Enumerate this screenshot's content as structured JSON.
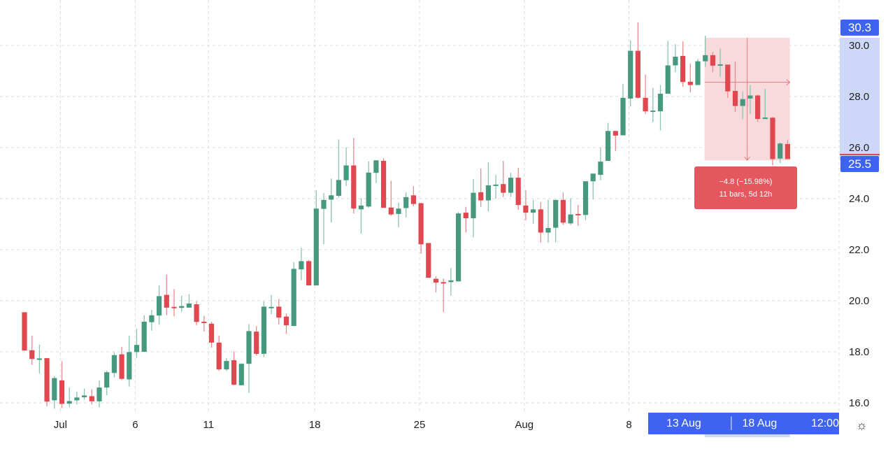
{
  "chart_data": {
    "type": "candlestick",
    "interval": "12h",
    "ylim": [
      15.7,
      31.0
    ],
    "yticks": [
      16.0,
      18.0,
      20.0,
      22.0,
      24.0,
      26.0,
      28.0,
      30.0
    ],
    "ytick_labels": [
      "16.0",
      "18.0",
      "20.0",
      "22.0",
      "24.0",
      "26.0",
      "28.0",
      "30.0"
    ],
    "xticks": [
      {
        "label": "Jul",
        "bar": 4.8
      },
      {
        "label": "6",
        "bar": 14.8
      },
      {
        "label": "11",
        "bar": 24.6
      },
      {
        "label": "18",
        "bar": 38.8
      },
      {
        "label": "25",
        "bar": 52.8
      },
      {
        "label": "Aug",
        "bar": 66.8
      },
      {
        "label": "8",
        "bar": 80.8
      }
    ],
    "grid": true,
    "colors": {
      "up": "#46997f",
      "down": "#e0474f",
      "up_wick": "#8cc3b2",
      "down_wick": "#ec8a8f",
      "accent": "#3d63ef",
      "measure_fill": "#f7d4d7",
      "measure_label": "#e5575f"
    },
    "ohlc": [
      [
        19.55,
        19.55,
        18.05,
        18.05
      ],
      [
        18.06,
        18.63,
        17.49,
        17.72
      ],
      [
        17.72,
        18.28,
        17.15,
        17.74
      ],
      [
        17.75,
        17.75,
        15.86,
        16.05
      ],
      [
        16.1,
        17.05,
        15.77,
        16.97
      ],
      [
        16.88,
        17.63,
        15.8,
        15.96
      ],
      [
        15.97,
        16.6,
        15.84,
        16.07
      ],
      [
        16.1,
        16.44,
        15.94,
        16.21
      ],
      [
        16.22,
        16.56,
        16.12,
        16.29
      ],
      [
        16.26,
        16.53,
        15.94,
        16.06
      ],
      [
        16.06,
        16.88,
        15.82,
        16.6
      ],
      [
        16.6,
        17.26,
        16.3,
        17.2
      ],
      [
        17.17,
        17.99,
        17.0,
        17.87
      ],
      [
        17.9,
        18.19,
        16.9,
        16.94
      ],
      [
        16.92,
        18.63,
        16.64,
        17.99
      ],
      [
        17.99,
        18.9,
        17.76,
        18.27
      ],
      [
        18.0,
        19.43,
        17.99,
        19.18
      ],
      [
        19.16,
        19.64,
        18.83,
        19.43
      ],
      [
        19.42,
        20.6,
        19.06,
        20.18
      ],
      [
        20.23,
        21.02,
        19.43,
        19.73
      ],
      [
        19.76,
        20.46,
        19.39,
        19.72
      ],
      [
        19.72,
        20.2,
        19.57,
        19.79
      ],
      [
        19.73,
        20.25,
        19.73,
        19.89
      ],
      [
        19.86,
        19.98,
        19.04,
        19.17
      ],
      [
        19.18,
        19.41,
        18.79,
        19.13
      ],
      [
        19.1,
        19.18,
        18.16,
        18.36
      ],
      [
        18.36,
        18.63,
        17.25,
        17.31
      ],
      [
        17.31,
        17.76,
        17.24,
        17.64
      ],
      [
        17.67,
        18.01,
        16.69,
        16.71
      ],
      [
        16.69,
        17.55,
        16.69,
        17.53
      ],
      [
        17.53,
        19.09,
        16.39,
        18.81
      ],
      [
        18.79,
        19.01,
        17.85,
        17.92
      ],
      [
        17.92,
        19.98,
        17.79,
        19.77
      ],
      [
        19.74,
        20.23,
        19.47,
        19.76
      ],
      [
        19.77,
        20.07,
        19.07,
        19.34
      ],
      [
        19.38,
        19.5,
        18.7,
        19.04
      ],
      [
        19.01,
        21.51,
        19.01,
        21.25
      ],
      [
        21.23,
        22.08,
        20.8,
        21.55
      ],
      [
        21.55,
        21.6,
        20.6,
        20.6
      ],
      [
        20.6,
        24.34,
        20.6,
        23.61
      ],
      [
        23.6,
        24.22,
        22.21,
        23.95
      ],
      [
        23.96,
        24.79,
        23.06,
        24.13
      ],
      [
        24.11,
        26.32,
        24.04,
        24.73
      ],
      [
        24.72,
        26.01,
        24.49,
        25.3
      ],
      [
        25.3,
        26.38,
        23.42,
        23.61
      ],
      [
        23.58,
        24.02,
        22.63,
        23.73
      ],
      [
        23.69,
        25.46,
        23.64,
        25.02
      ],
      [
        25.01,
        25.5,
        24.61,
        25.5
      ],
      [
        25.48,
        25.58,
        23.64,
        23.64
      ],
      [
        23.65,
        24.7,
        23.33,
        23.38
      ],
      [
        23.4,
        23.84,
        22.88,
        23.61
      ],
      [
        23.63,
        24.25,
        23.27,
        24.06
      ],
      [
        24.13,
        24.49,
        23.7,
        23.79
      ],
      [
        23.82,
        23.84,
        21.84,
        22.21
      ],
      [
        22.26,
        22.26,
        20.9,
        20.9
      ],
      [
        20.86,
        20.96,
        20.32,
        20.71
      ],
      [
        20.73,
        20.87,
        19.56,
        20.68
      ],
      [
        20.73,
        21.28,
        20.2,
        20.8
      ],
      [
        20.76,
        23.48,
        20.76,
        23.42
      ],
      [
        23.45,
        23.68,
        22.67,
        23.23
      ],
      [
        23.23,
        24.77,
        22.48,
        24.23
      ],
      [
        24.25,
        25.18,
        23.68,
        23.93
      ],
      [
        23.93,
        25.43,
        23.5,
        24.52
      ],
      [
        24.51,
        24.93,
        24.0,
        24.55
      ],
      [
        24.57,
        25.48,
        24.06,
        24.23
      ],
      [
        24.23,
        25.02,
        24.06,
        24.82
      ],
      [
        24.82,
        25.21,
        23.56,
        23.75
      ],
      [
        23.73,
        24.34,
        23.15,
        23.45
      ],
      [
        23.45,
        23.95,
        23.01,
        23.58
      ],
      [
        23.58,
        23.86,
        22.28,
        22.67
      ],
      [
        22.67,
        23.95,
        22.27,
        22.85
      ],
      [
        22.86,
        23.95,
        22.29,
        23.95
      ],
      [
        23.95,
        24.25,
        22.97,
        23.06
      ],
      [
        23.03,
        24.02,
        22.97,
        23.38
      ],
      [
        23.4,
        23.75,
        22.94,
        23.36
      ],
      [
        23.36,
        24.68,
        23.15,
        24.68
      ],
      [
        24.68,
        24.98,
        23.97,
        24.98
      ],
      [
        24.93,
        26.0,
        24.72,
        25.45
      ],
      [
        25.48,
        26.97,
        25.48,
        26.65
      ],
      [
        26.65,
        26.65,
        25.86,
        26.47
      ],
      [
        26.48,
        28.49,
        26.48,
        27.95
      ],
      [
        27.92,
        30.2,
        27.61,
        29.79
      ],
      [
        29.79,
        30.91,
        27.92,
        27.95
      ],
      [
        27.95,
        28.86,
        27.31,
        27.42
      ],
      [
        27.4,
        28.34,
        27.0,
        27.45
      ],
      [
        27.42,
        28.45,
        26.67,
        28.11
      ],
      [
        28.11,
        30.18,
        28.11,
        29.22
      ],
      [
        29.22,
        30.05,
        28.95,
        29.56
      ],
      [
        29.59,
        30.16,
        28.38,
        28.57
      ],
      [
        28.58,
        29.29,
        28.16,
        28.45
      ],
      [
        28.45,
        29.47,
        28.45,
        29.38
      ],
      [
        29.38,
        30.38,
        29.16,
        29.62
      ],
      [
        29.62,
        29.75,
        28.95,
        29.21
      ],
      [
        29.23,
        29.88,
        28.77,
        29.26
      ],
      [
        29.25,
        29.25,
        27.95,
        28.2
      ],
      [
        28.22,
        29.37,
        27.4,
        27.63
      ],
      [
        27.63,
        28.2,
        27.12,
        27.9
      ],
      [
        27.92,
        28.45,
        27.31,
        28.04
      ],
      [
        28.04,
        28.08,
        27.01,
        27.12
      ],
      [
        27.12,
        28.31,
        27.12,
        27.18
      ],
      [
        27.17,
        27.2,
        25.3,
        25.55
      ],
      [
        25.57,
        26.2,
        25.39,
        26.16
      ],
      [
        26.14,
        26.3,
        25.55,
        25.55
      ]
    ],
    "measure": {
      "start_bar": 90.9,
      "end_bar": 102.3,
      "high": 30.3,
      "low": 25.5,
      "change_text": "−4.8 (−15.98%)",
      "bars_text": "11 bars, 5d 12h"
    },
    "price_labels": {
      "high": "30.3",
      "low": "25.5"
    },
    "date_range": {
      "start": "13 Aug '22",
      "end": "18 Aug '22",
      "time": "12:00"
    },
    "settings_icon": "gear-icon"
  }
}
